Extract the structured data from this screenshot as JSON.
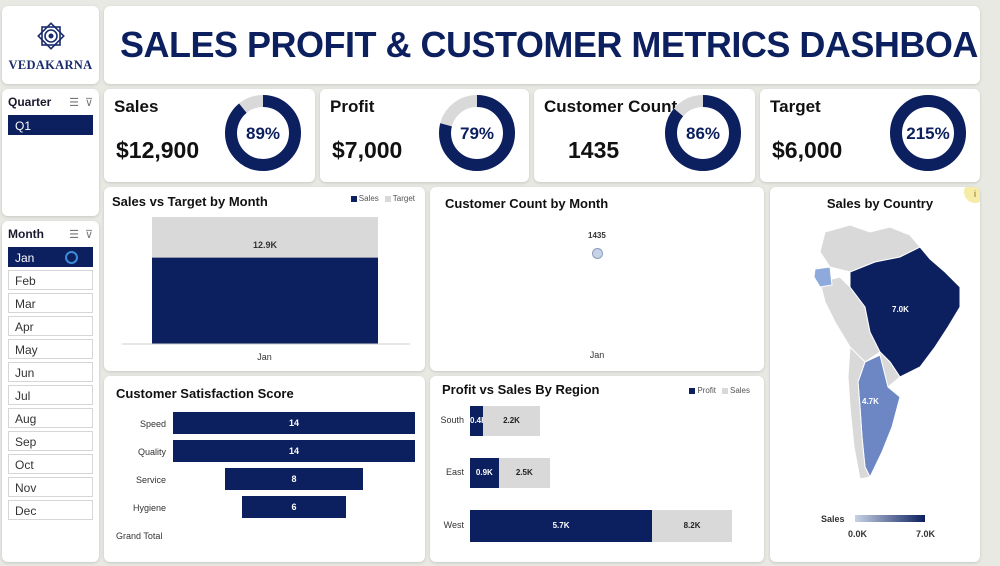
{
  "logo": {
    "name": "VEDAKARNA"
  },
  "header": {
    "title": "SALES PROFIT & CUSTOMER METRICS DASHBOARD"
  },
  "colors": {
    "navy": "#0c1f5e",
    "light_gray": "#d9d9d9",
    "map_light": "#8ea9db"
  },
  "quarter_slicer": {
    "title": "Quarter",
    "items": [
      "Q1"
    ],
    "selected": "Q1"
  },
  "month_slicer": {
    "title": "Month",
    "items": [
      "Jan",
      "Feb",
      "Mar",
      "Apr",
      "May",
      "Jun",
      "Jul",
      "Aug",
      "Sep",
      "Oct",
      "Nov",
      "Dec"
    ],
    "selected": "Jan"
  },
  "kpis": [
    {
      "label": "Sales",
      "value": "$12,900",
      "percent_label": "89%",
      "percent": 89
    },
    {
      "label": "Profit",
      "value": "$7,000",
      "percent_label": "79%",
      "percent": 79
    },
    {
      "label": "Customer Count",
      "value": "1435",
      "percent_label": "86%",
      "percent": 86
    },
    {
      "label": "Target",
      "value": "$6,000",
      "percent_label": "215%",
      "percent": 100
    }
  ],
  "sales_vs_target": {
    "title": "Sales vs Target by Month",
    "legend": [
      "Sales",
      "Target"
    ],
    "category": "Jan",
    "bar_label": "12.9K",
    "sales": 12.9,
    "target": 6.0,
    "ymax": 15
  },
  "customer_count_month": {
    "title": "Customer Count by Month",
    "category": "Jan",
    "value_label": "1435"
  },
  "sales_by_country": {
    "title": "Sales by Country",
    "labels": [
      "7.0K",
      "4.7K"
    ],
    "legend_title": "Sales",
    "legend_min": "0.0K",
    "legend_max": "7.0K"
  },
  "satisfaction": {
    "title": "Customer Satisfaction Score",
    "rows": [
      {
        "label": "Speed",
        "value": 14,
        "value_label": "14"
      },
      {
        "label": "Quality",
        "value": 14,
        "value_label": "14"
      },
      {
        "label": "Service",
        "value": 8,
        "value_label": "8"
      },
      {
        "label": "Hygiene",
        "value": 6,
        "value_label": "6"
      }
    ],
    "total_label": "Grand Total",
    "max": 14
  },
  "profit_vs_sales_region": {
    "title": "Profit vs Sales By Region",
    "legend": [
      "Profit",
      "Sales"
    ],
    "regions": [
      {
        "name": "South",
        "profit": 0.4,
        "sales": 2.2,
        "profit_label": "0.4K",
        "sales_label": "2.2K"
      },
      {
        "name": "East",
        "profit": 0.9,
        "sales": 2.5,
        "profit_label": "0.9K",
        "sales_label": "2.5K"
      },
      {
        "name": "West",
        "profit": 5.7,
        "sales": 8.2,
        "profit_label": "5.7K",
        "sales_label": "8.2K"
      }
    ],
    "max": 8.2
  },
  "chart_data": [
    {
      "type": "bar",
      "title": "Sales vs Target by Month",
      "categories": [
        "Jan"
      ],
      "series": [
        {
          "name": "Sales",
          "values": [
            12.9
          ]
        },
        {
          "name": "Target",
          "values": [
            6.0
          ]
        }
      ],
      "data_labels": [
        "12.9K"
      ]
    },
    {
      "type": "scatter",
      "title": "Customer Count by Month",
      "x": [
        "Jan"
      ],
      "y": [
        1435
      ]
    },
    {
      "type": "bar",
      "title": "Customer Satisfaction Score",
      "categories": [
        "Speed",
        "Quality",
        "Service",
        "Hygiene"
      ],
      "values": [
        14,
        14,
        8,
        6
      ]
    },
    {
      "type": "bar",
      "title": "Profit vs Sales By Region",
      "categories": [
        "South",
        "East",
        "West"
      ],
      "series": [
        {
          "name": "Profit",
          "values": [
            0.4,
            0.9,
            5.7
          ]
        },
        {
          "name": "Sales",
          "values": [
            2.2,
            2.5,
            8.2
          ]
        }
      ]
    }
  ]
}
